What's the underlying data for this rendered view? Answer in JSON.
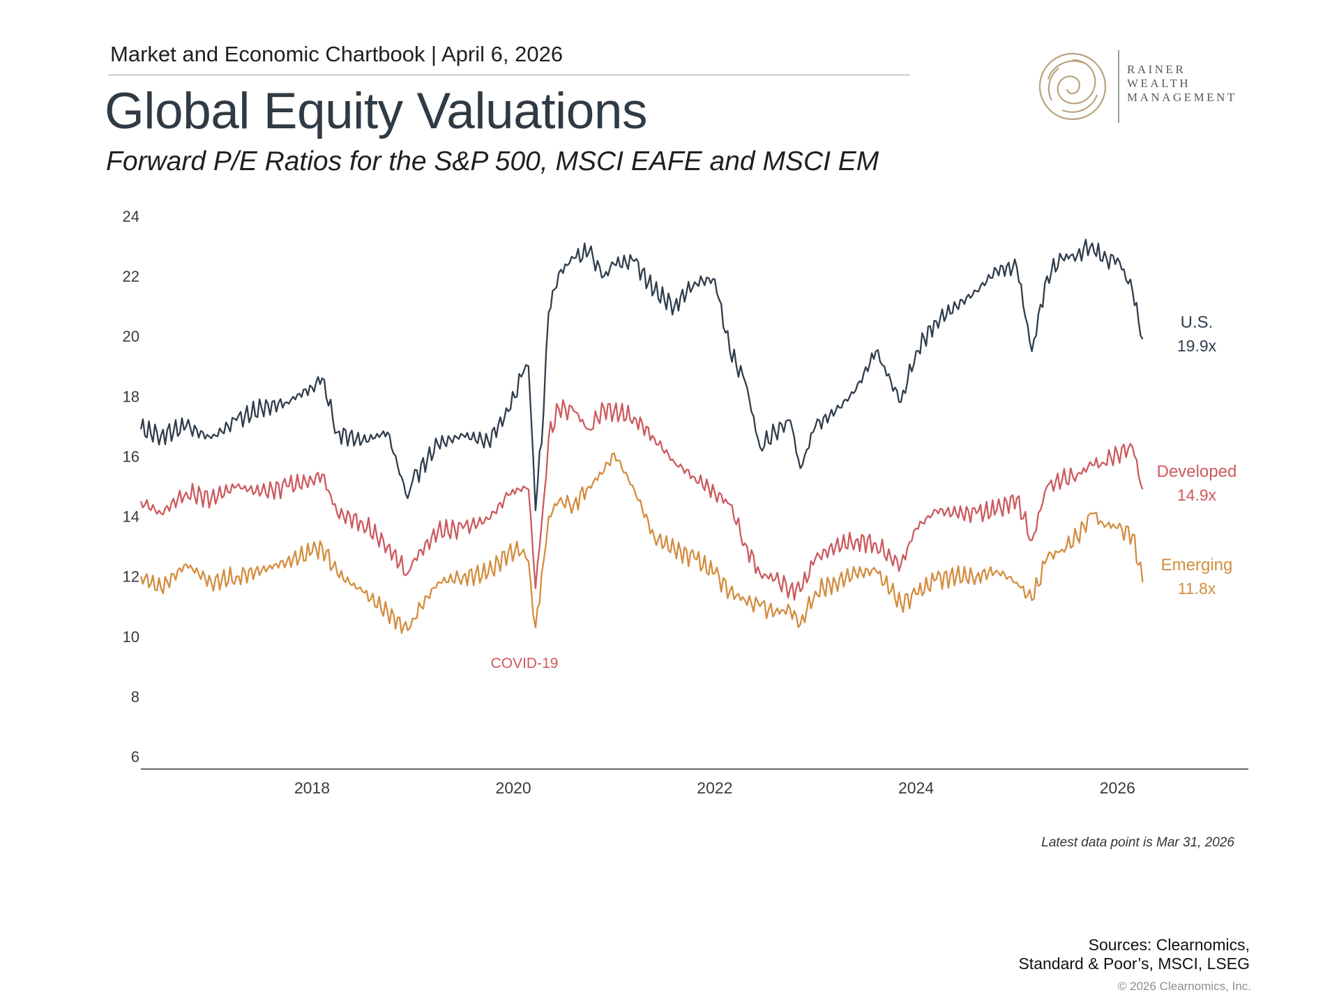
{
  "header": {
    "text": "Market and Economic Chartbook | April 6, 2026",
    "title": "Global Equity Valuations",
    "subtitle": "Forward P/E Ratios for the S&P 500, MSCI EAFE and MSCI EM"
  },
  "logo": {
    "line1": "RAINER",
    "line2": "WEALTH",
    "line3": "MANAGEMENT",
    "icon": "spiral-logo-icon"
  },
  "colors": {
    "us": "#2f3d4c",
    "developed": "#cc5a5e",
    "emerging": "#d38d3f",
    "axis": "#333333"
  },
  "chart_data": {
    "type": "line",
    "title": "Global Equity Valuations",
    "subtitle": "Forward P/E Ratios for the S&P 500, MSCI EAFE and MSCI EM",
    "xlim": [
      2016.3,
      2027.3
    ],
    "ylim": [
      6,
      24
    ],
    "x_ticks": [
      2018,
      2020,
      2022,
      2024,
      2026
    ],
    "y_ticks": [
      6,
      8,
      10,
      12,
      14,
      16,
      18,
      20,
      22,
      24
    ],
    "grid": false,
    "series": [
      {
        "name": "U.S.",
        "end_label": "19.9x",
        "color": "#2f3d4c",
        "x": [
          2016.3,
          2016.5,
          2016.75,
          2017.0,
          2017.25,
          2017.5,
          2017.75,
          2018.0,
          2018.1,
          2018.25,
          2018.5,
          2018.75,
          2018.95,
          2019.0,
          2019.25,
          2019.5,
          2019.75,
          2019.95,
          2020.1,
          2020.15,
          2020.22,
          2020.3,
          2020.35,
          2020.45,
          2020.6,
          2020.75,
          2020.9,
          2021.0,
          2021.2,
          2021.4,
          2021.6,
          2021.8,
          2022.0,
          2022.15,
          2022.3,
          2022.45,
          2022.6,
          2022.75,
          2022.85,
          2023.0,
          2023.2,
          2023.4,
          2023.6,
          2023.75,
          2023.85,
          2024.0,
          2024.2,
          2024.4,
          2024.6,
          2024.8,
          2025.0,
          2025.15,
          2025.3,
          2025.45,
          2025.6,
          2025.75,
          2025.85,
          2026.0,
          2026.15,
          2026.25
        ],
        "y": [
          16.9,
          16.7,
          17.0,
          16.6,
          17.2,
          17.6,
          17.8,
          18.3,
          18.6,
          16.8,
          16.5,
          16.8,
          14.6,
          15.2,
          16.4,
          16.7,
          16.5,
          17.5,
          18.8,
          19.0,
          14.2,
          17.5,
          20.8,
          22.1,
          22.6,
          22.8,
          22.0,
          22.4,
          22.5,
          21.5,
          21.0,
          21.8,
          21.9,
          19.5,
          18.5,
          16.3,
          16.8,
          17.2,
          15.6,
          17.0,
          17.5,
          18.2,
          19.5,
          18.5,
          17.8,
          19.5,
          20.5,
          21.0,
          21.5,
          22.2,
          22.3,
          19.5,
          22.0,
          22.6,
          22.7,
          23.1,
          22.5,
          22.6,
          21.5,
          19.9
        ]
      },
      {
        "name": "Developed",
        "end_label": "14.9x",
        "color": "#cc5a5e",
        "x": [
          2016.3,
          2016.5,
          2016.75,
          2017.0,
          2017.25,
          2017.5,
          2017.75,
          2018.0,
          2018.1,
          2018.25,
          2018.5,
          2018.75,
          2018.95,
          2019.0,
          2019.25,
          2019.5,
          2019.75,
          2019.95,
          2020.1,
          2020.15,
          2020.22,
          2020.3,
          2020.35,
          2020.45,
          2020.6,
          2020.75,
          2020.9,
          2021.0,
          2021.2,
          2021.4,
          2021.6,
          2021.8,
          2022.0,
          2022.15,
          2022.3,
          2022.45,
          2022.6,
          2022.75,
          2022.85,
          2023.0,
          2023.2,
          2023.4,
          2023.6,
          2023.75,
          2023.85,
          2024.0,
          2024.2,
          2024.4,
          2024.6,
          2024.8,
          2025.0,
          2025.15,
          2025.3,
          2025.45,
          2025.6,
          2025.75,
          2025.85,
          2026.0,
          2026.15,
          2026.25
        ],
        "y": [
          14.5,
          14.1,
          14.8,
          14.6,
          15.0,
          14.8,
          15.0,
          15.2,
          15.4,
          14.1,
          13.8,
          13.0,
          12.1,
          12.5,
          13.5,
          13.6,
          13.9,
          14.7,
          15.0,
          14.9,
          11.6,
          14.5,
          16.6,
          17.6,
          17.5,
          16.9,
          17.6,
          17.5,
          17.3,
          16.6,
          15.8,
          15.3,
          14.8,
          14.4,
          13.1,
          12.1,
          11.9,
          11.6,
          11.5,
          12.6,
          13.0,
          13.2,
          13.1,
          12.6,
          12.4,
          13.6,
          14.2,
          14.1,
          14.1,
          14.2,
          14.6,
          13.2,
          15.0,
          15.2,
          15.4,
          15.7,
          15.8,
          16.1,
          16.3,
          14.9
        ]
      },
      {
        "name": "Emerging",
        "end_label": "11.8x",
        "color": "#d38d3f",
        "x": [
          2016.3,
          2016.5,
          2016.75,
          2017.0,
          2017.25,
          2017.5,
          2017.75,
          2018.0,
          2018.1,
          2018.25,
          2018.5,
          2018.75,
          2018.95,
          2019.0,
          2019.25,
          2019.5,
          2019.75,
          2019.95,
          2020.1,
          2020.15,
          2020.22,
          2020.3,
          2020.35,
          2020.45,
          2020.6,
          2020.75,
          2020.9,
          2021.0,
          2021.2,
          2021.4,
          2021.6,
          2021.8,
          2022.0,
          2022.15,
          2022.3,
          2022.45,
          2022.6,
          2022.75,
          2022.85,
          2023.0,
          2023.2,
          2023.4,
          2023.6,
          2023.75,
          2023.85,
          2024.0,
          2024.2,
          2024.4,
          2024.6,
          2024.8,
          2025.0,
          2025.15,
          2025.3,
          2025.45,
          2025.6,
          2025.75,
          2025.85,
          2026.0,
          2026.15,
          2026.25
        ],
        "y": [
          12.0,
          11.6,
          12.4,
          11.8,
          12.0,
          12.2,
          12.5,
          12.8,
          13.0,
          12.1,
          11.5,
          10.8,
          10.2,
          10.6,
          11.8,
          12.0,
          12.1,
          12.8,
          12.9,
          12.5,
          10.3,
          12.5,
          14.0,
          14.5,
          14.4,
          15.0,
          15.5,
          16.1,
          14.9,
          13.3,
          12.9,
          12.6,
          12.1,
          11.5,
          11.2,
          11.0,
          10.8,
          10.9,
          10.4,
          11.5,
          11.8,
          12.1,
          12.2,
          11.5,
          11.1,
          11.4,
          11.9,
          12.0,
          12.0,
          12.2,
          11.8,
          11.2,
          12.6,
          12.9,
          13.3,
          14.1,
          13.8,
          13.6,
          13.4,
          11.8
        ]
      }
    ],
    "annotations": [
      {
        "text": "COVID-19"
      }
    ],
    "note": "Latest data point is Mar 31, 2026"
  },
  "footer": {
    "sources_line1": "Sources: Clearnomics,",
    "sources_line2": "Standard & Poor’s, MSCI, LSEG",
    "copyright": "© 2026 Clearnomics, Inc."
  }
}
